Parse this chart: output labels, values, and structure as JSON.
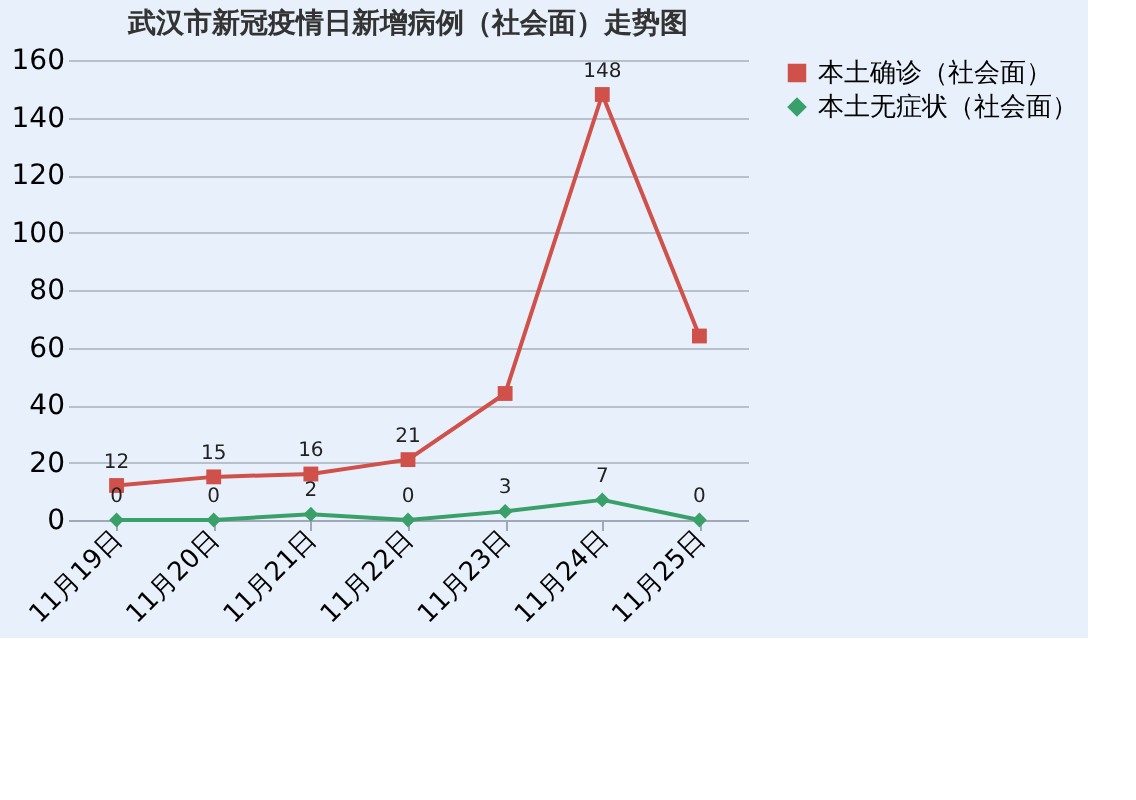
{
  "chart_data": {
    "type": "line",
    "title": "武汉市新冠疫情日新增病例（社会面）走势图",
    "categories": [
      "11月19日",
      "11月20日",
      "11月21日",
      "11月22日",
      "11月23日",
      "11月24日",
      "11月25日"
    ],
    "series": [
      {
        "name": "本土确诊（社会面）",
        "color": "#d0504a",
        "marker": "square",
        "values": [
          12,
          15,
          16,
          21,
          44,
          148,
          64
        ],
        "value_labels": [
          "12",
          "15",
          "16",
          "21",
          null,
          "148",
          null
        ]
      },
      {
        "name": "本土无症状（社会面）",
        "color": "#3aa06a",
        "marker": "diamond",
        "values": [
          0,
          0,
          2,
          0,
          3,
          7,
          0
        ],
        "value_labels": [
          "0",
          "0",
          "2",
          "0",
          "3",
          "7",
          "0"
        ]
      }
    ],
    "ylim": [
      0,
      160
    ],
    "yticks": [
      0,
      20,
      40,
      60,
      80,
      100,
      120,
      140,
      160
    ],
    "grid": "y",
    "legend": "right",
    "line_style": "solid"
  }
}
